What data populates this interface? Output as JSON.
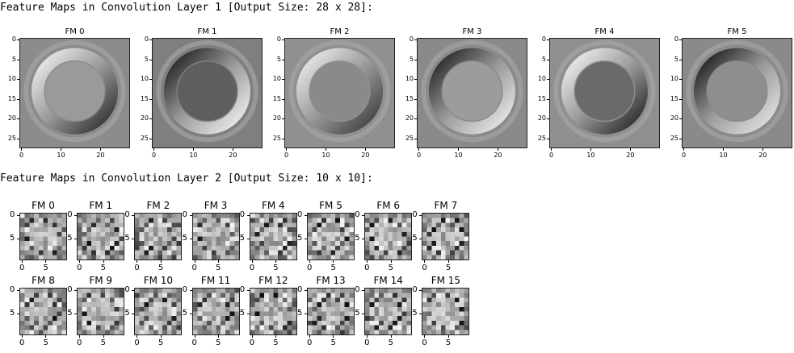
{
  "headers": {
    "layer1": "Feature Maps in Convolution Layer 1 [Output Size: 28 x 28]:",
    "layer2": "Feature Maps in Convolution Layer 2 [Output Size: 10 x 10]:"
  },
  "layer1": {
    "titles": [
      "FM 0",
      "FM 1",
      "FM 2",
      "FM 3",
      "FM 4",
      "FM 5"
    ],
    "yticks": [
      "0",
      "5",
      "10",
      "15",
      "20",
      "25"
    ],
    "xticks": [
      "0",
      "10",
      "20"
    ],
    "maps": [
      {
        "inner": "#9a9a9a",
        "ring_light": "#f2f2f2",
        "ring_dark": "#2a2a2a",
        "bg": "#8c8c8c"
      },
      {
        "inner": "#5e5e5e",
        "ring_light": "#f5f5f5",
        "ring_dark": "#1a1a1a",
        "bg": "#7f7f7f"
      },
      {
        "inner": "#8a8a8a",
        "ring_light": "#f0f0f0",
        "ring_dark": "#3a3a3a",
        "bg": "#909090"
      },
      {
        "inner": "#9c9c9c",
        "ring_light": "#eeeeee",
        "ring_dark": "#1e1e1e",
        "bg": "#8a8a8a"
      },
      {
        "inner": "#6a6a6a",
        "ring_light": "#f4f4f4",
        "ring_dark": "#222222",
        "bg": "#8f8f8f"
      },
      {
        "inner": "#8e8e8e",
        "ring_light": "#e6e6e6",
        "ring_dark": "#151515",
        "bg": "#8a8a8a"
      }
    ]
  },
  "layer2": {
    "titles": [
      "FM 0",
      "FM 1",
      "FM 2",
      "FM 3",
      "FM 4",
      "FM 5",
      "FM 6",
      "FM 7",
      "FM 8",
      "FM 9",
      "FM 10",
      "FM 11",
      "FM 12",
      "FM 13",
      "FM 14",
      "FM 15"
    ],
    "yticks": [
      "0",
      "5"
    ],
    "xticks": [
      "0",
      "5"
    ]
  }
}
